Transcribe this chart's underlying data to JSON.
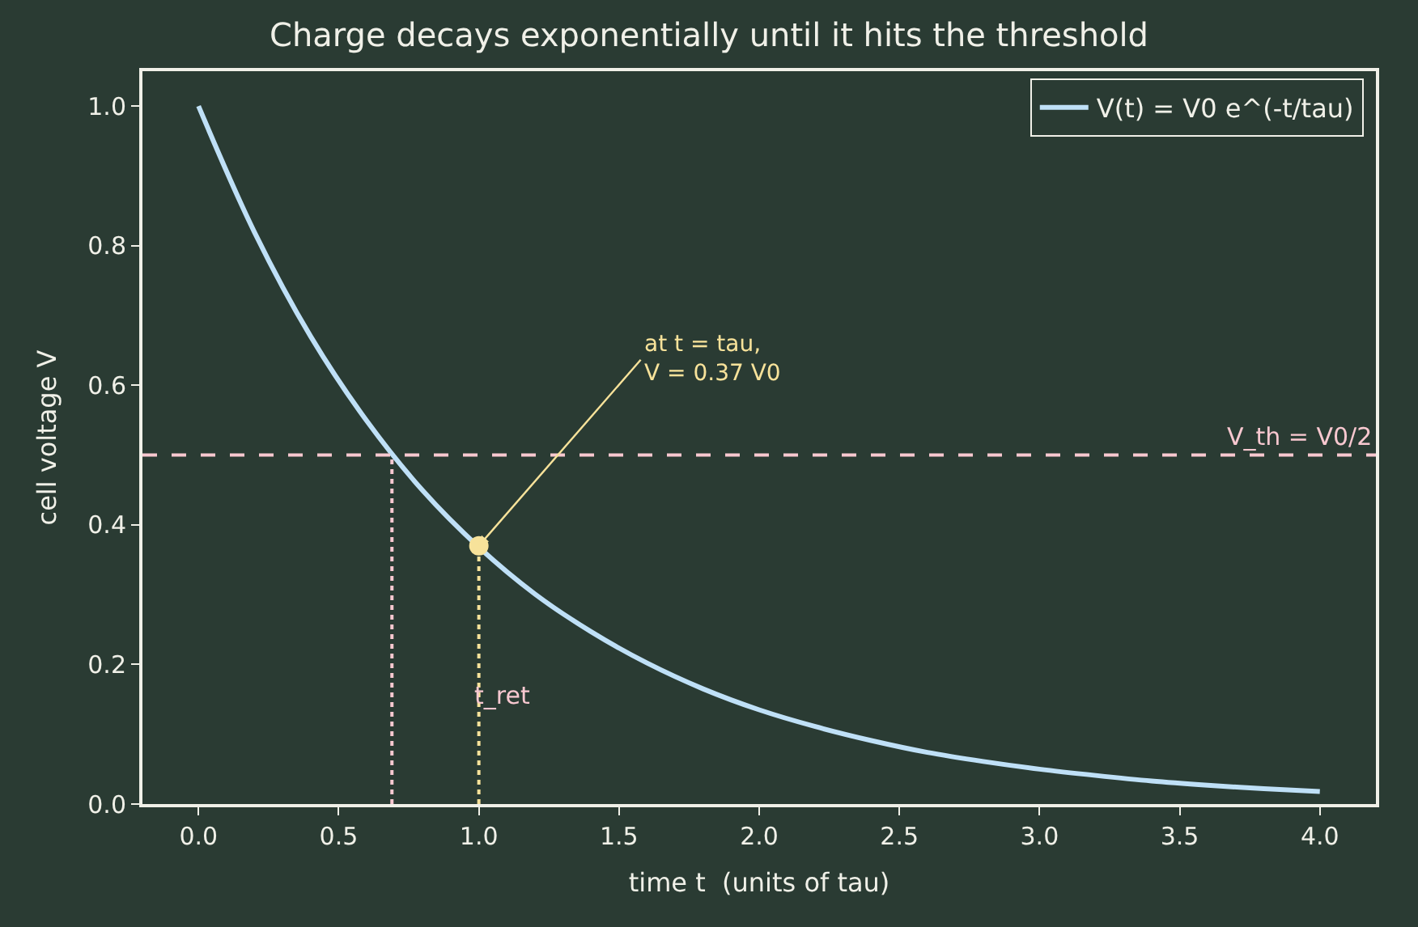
{
  "chart_data": {
    "type": "line",
    "title": "Charge decays exponentially until it hits the threshold",
    "xlabel": "time t  (units of tau)",
    "ylabel": "cell voltage V",
    "xlim": [
      -0.2,
      4.2
    ],
    "ylim": [
      0,
      1.05
    ],
    "xticks": [
      {
        "value": 0,
        "label": "0.0"
      },
      0.5,
      {
        "value": 1,
        "label": "1.0"
      },
      1.5,
      {
        "value": 2,
        "label": "2.0"
      },
      2.5,
      {
        "value": 3,
        "label": "3.0"
      },
      3.5,
      {
        "value": 4,
        "label": "4.0"
      }
    ],
    "yticks": [
      {
        "value": 0,
        "label": "0.0"
      },
      0.2,
      0.4,
      0.6,
      0.8,
      {
        "value": 1,
        "label": "1.0"
      }
    ],
    "grid": false,
    "legend": "top right",
    "marker": "none",
    "line_style": "solid",
    "series": [
      {
        "name": "V(t) = V0 e^(-t/tau)",
        "color": "#bfe0f7",
        "x": [
          0,
          0.2,
          0.4,
          0.6,
          0.8,
          1.0,
          1.2,
          1.4,
          1.6,
          1.8,
          2.0,
          2.2,
          2.4,
          2.6,
          2.8,
          3.0,
          3.2,
          3.4,
          3.6,
          3.8,
          4.0
        ],
        "values": [
          1.0,
          0.819,
          0.67,
          0.549,
          0.449,
          0.368,
          0.301,
          0.247,
          0.202,
          0.165,
          0.135,
          0.111,
          0.091,
          0.074,
          0.061,
          0.05,
          0.041,
          0.033,
          0.027,
          0.022,
          0.018
        ]
      },
      {
        "color": "#f8c8d0",
        "x": [
          0.69,
          0.69
        ],
        "values": [
          0,
          0.5
        ],
        "line_style": "dotted"
      },
      {
        "color": "#f7e29a",
        "x": [
          1.0,
          1.0
        ],
        "values": [
          0,
          0.37
        ],
        "line_style": "dotted"
      },
      {
        "type": "scatter",
        "color": "#f7e29a",
        "x": [
          1.0
        ],
        "values": [
          0.37
        ],
        "marker": "circle"
      }
    ],
    "ref_lines": [
      {
        "axis": "y",
        "value": 0.5,
        "label": "V_th = V0/2",
        "color": "#f8c8d0",
        "line_style": "dashed"
      }
    ],
    "annotations": [
      {
        "text": "at t = tau,\nV = 0.37 V0",
        "x": 1.0,
        "y": 0.37
      },
      "t_ret"
    ]
  }
}
